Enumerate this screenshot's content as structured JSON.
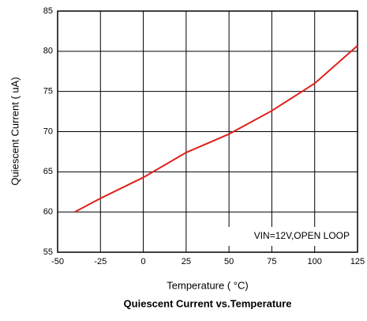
{
  "chart_data": {
    "type": "line",
    "title": "Quiescent Current vs.Temperature",
    "xlabel": "Temperature ( °C)",
    "ylabel": "Quiescent Current (  uA)",
    "annotation": "VIN=12V,OPEN LOOP",
    "x": [
      -40,
      -25,
      0,
      25,
      50,
      75,
      100,
      125
    ],
    "values": [
      60,
      61.7,
      64.3,
      67.4,
      69.7,
      72.6,
      76,
      80.7
    ],
    "color": "#e0201c",
    "xlim": [
      -50,
      125
    ],
    "xticks": [
      -50,
      -25,
      0,
      25,
      50,
      75,
      100,
      125
    ],
    "ylim": [
      55,
      85
    ],
    "yticks": [
      55,
      60,
      65,
      70,
      75,
      80,
      85
    ],
    "grid": true
  }
}
